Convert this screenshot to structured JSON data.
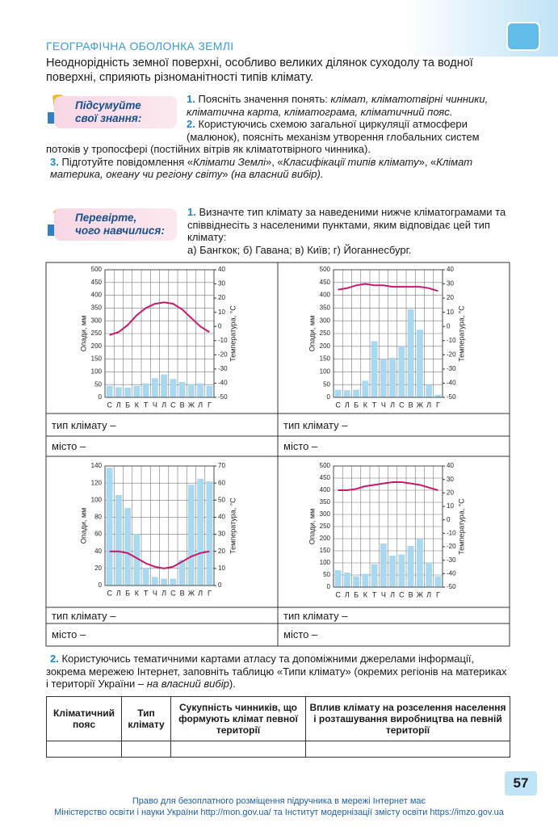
{
  "header": {
    "title": "ГЕОГРАФІЧНА ОБОЛОНКА ЗЕМЛІ"
  },
  "intro": "Неоднорідність земної поверхні, особливо великих ділянок суходолу та водної поверхні, сприяють різноманітності типів клімату.",
  "review": {
    "label": [
      "Підсумуйте",
      "свої знання:"
    ],
    "items": [
      {
        "number": "1.",
        "parts": [
          {
            "text": "Поясніть значення понять: "
          },
          {
            "text": "клімат, кліматотвірні чинники, кліматична карта, кліматограма, кліматичний пояс.",
            "italic": true
          }
        ]
      },
      {
        "number": "2.",
        "parts": [
          {
            "text": "Користуючись схемою загальної циркуляції атмосфери (малюнок), поясніть механізм утворення глобальних систем потоків у тропосфері (постійних вітрів як кліматотвірного чинника)."
          }
        ]
      },
      {
        "number": "3.",
        "parts": [
          {
            "text": "Підготуйте повідомлення «"
          },
          {
            "text": "Клімати Землі",
            "italic": true
          },
          {
            "text": "», «"
          },
          {
            "text": "Класифікації типів клімату",
            "italic": true
          },
          {
            "text": "», «"
          },
          {
            "text": "Клімат материка, океану чи регіону світу",
            "italic": true
          },
          {
            "text": "» "
          },
          {
            "text": "(на власний вибір).",
            "italic": true
          }
        ]
      }
    ]
  },
  "check": {
    "label": [
      "Перевірте,",
      "чого навчилися:"
    ],
    "task1": {
      "number": "1.",
      "text": "Визначте тип клімату за наведеними нижче кліматограмами та співвіднесіть з населеними пунктами, яким відповідає цей тип клімату:",
      "options": "а) Бангкок; б) Гавана; в) Київ; г) Йоганнесбург."
    },
    "task2": {
      "number": "2.",
      "parts": [
        {
          "text": "Користуючись тематичними картами атласу та допоміжними джерелами інформації, зокрема мережею Інтернет, заповніть таблицю «Типи клімату» (окремих регіонів на материках і території України – "
        },
        {
          "text": "на власний вибір",
          "italic": true
        },
        {
          "text": ")."
        }
      ]
    }
  },
  "charts": [
    {
      "type": "climatogram",
      "categories": [
        "С",
        "Л",
        "Б",
        "К",
        "Т",
        "Ч",
        "Л",
        "С",
        "В",
        "Ж",
        "Л",
        "Г"
      ],
      "ylabel": "Опади, мм",
      "y2label": "Температура, °С",
      "ylim": [
        0,
        500
      ],
      "yticks": [
        0,
        50,
        100,
        150,
        200,
        250,
        300,
        350,
        400,
        450,
        500
      ],
      "y2lim": [
        -50,
        40
      ],
      "y2ticks": [
        -50,
        -40,
        -30,
        -20,
        -10,
        0,
        10,
        20,
        30,
        40
      ],
      "series": [
        {
          "color": "#a8d9f1",
          "values": [
            45,
            40,
            38,
            45,
            55,
            75,
            90,
            72,
            60,
            52,
            55,
            45
          ]
        },
        {
          "color": "#c8186e",
          "axis": "y2",
          "values": [
            -6,
            -4,
            1,
            8,
            13,
            16,
            17,
            16,
            12,
            6,
            0,
            -4
          ]
        }
      ]
    },
    {
      "type": "climatogram",
      "categories": [
        "С",
        "Л",
        "Б",
        "К",
        "Т",
        "Ч",
        "Л",
        "С",
        "В",
        "Ж",
        "Л",
        "Г"
      ],
      "ylabel": "Опади, мм",
      "y2label": "Температура, °С",
      "ylim": [
        0,
        500
      ],
      "yticks": [
        0,
        50,
        100,
        150,
        200,
        250,
        300,
        350,
        400,
        450,
        500
      ],
      "y2lim": [
        -50,
        40
      ],
      "y2ticks": [
        -50,
        -40,
        -30,
        -20,
        -10,
        0,
        10,
        20,
        30,
        40
      ],
      "series": [
        {
          "color": "#a8d9f1",
          "values": [
            30,
            28,
            30,
            65,
            220,
            150,
            155,
            200,
            345,
            265,
            50,
            10
          ]
        },
        {
          "color": "#c8186e",
          "axis": "y2",
          "values": [
            26,
            27,
            29,
            30,
            29,
            29,
            28,
            28,
            28,
            28,
            27,
            25
          ]
        }
      ]
    },
    {
      "type": "climatogram",
      "categories": [
        "С",
        "Л",
        "Б",
        "К",
        "Т",
        "Ч",
        "Л",
        "С",
        "В",
        "Ж",
        "Л",
        "Г"
      ],
      "ylabel": "Опади, мм",
      "y2label": "Температура, °С",
      "ylim": [
        0,
        140
      ],
      "yticks": [
        0,
        20,
        40,
        60,
        80,
        100,
        120,
        140
      ],
      "y2lim": [
        0,
        70
      ],
      "y2ticks": [
        0,
        10,
        20,
        30,
        40,
        50,
        60,
        70
      ],
      "series": [
        {
          "color": "#a8d9f1",
          "values": [
            138,
            106,
            91,
            60,
            20,
            10,
            8,
            8,
            30,
            118,
            125,
            122
          ]
        },
        {
          "color": "#c8186e",
          "axis": "y2",
          "values": [
            20,
            20,
            19,
            16,
            13,
            11,
            10,
            11,
            14,
            17,
            19,
            20
          ]
        }
      ]
    },
    {
      "type": "climatogram",
      "categories": [
        "С",
        "Л",
        "Б",
        "К",
        "Т",
        "Ч",
        "Л",
        "С",
        "В",
        "Ж",
        "Л",
        "Г"
      ],
      "ylabel": "Опади, мм",
      "y2label": "Температура, °С",
      "ylim": [
        0,
        500
      ],
      "yticks": [
        0,
        50,
        100,
        150,
        200,
        250,
        300,
        350,
        400,
        450,
        500
      ],
      "y2lim": [
        -50,
        40
      ],
      "y2ticks": [
        -50,
        -40,
        -30,
        -20,
        -10,
        0,
        10,
        20,
        30,
        40
      ],
      "series": [
        {
          "color": "#a8d9f1",
          "values": [
            70,
            60,
            45,
            55,
            95,
            180,
            130,
            135,
            170,
            200,
            100,
            45
          ]
        },
        {
          "color": "#c8186e",
          "axis": "y2",
          "values": [
            22,
            22,
            23,
            25,
            26,
            27,
            28,
            28,
            27,
            26,
            24,
            22
          ]
        }
      ]
    }
  ],
  "answer_labels": {
    "type": "тип клімату –",
    "city": "місто –"
  },
  "table": {
    "headers": [
      "Кліматичний пояс",
      "Тип клімату",
      "Сукупність чинників, що формують клімат певної території",
      "Вплив клімату на розселення населення і розташування виробництва на певній території"
    ]
  },
  "footer": {
    "page": "57",
    "lines": [
      "Право для безоплатного розміщення підручника в мережі Інтернет має",
      "Міністерство освіти і науки України http://mon.gov.ua/ та Інститут модернізації змісту освіти https://imzo.gov.ua"
    ]
  }
}
